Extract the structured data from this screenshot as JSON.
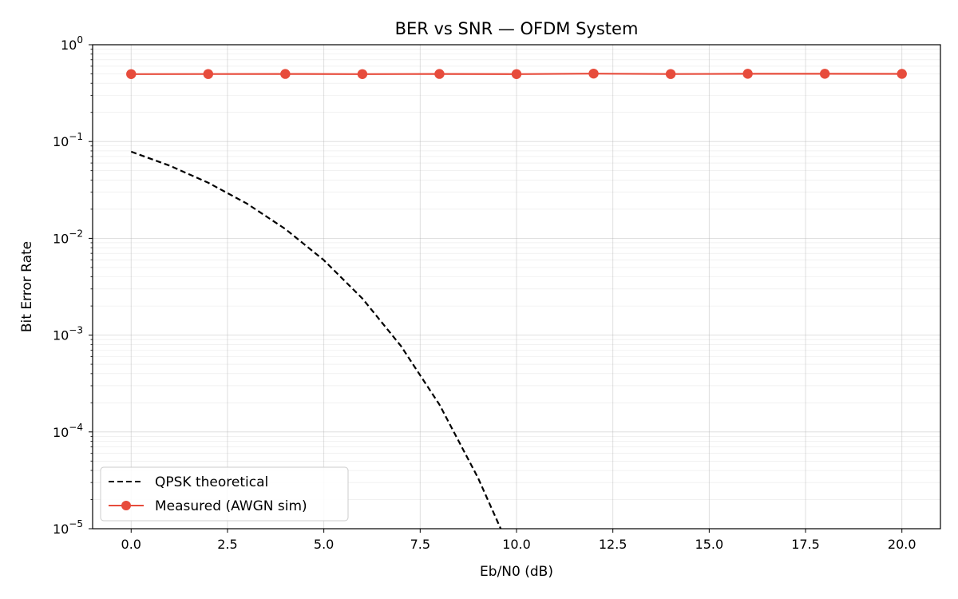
{
  "chart_data": {
    "type": "line",
    "title": "BER vs SNR — OFDM System",
    "xlabel": "Eb/N0 (dB)",
    "ylabel": "Bit Error Rate",
    "xlim": [
      -1,
      21
    ],
    "ylim": [
      1e-05,
      1
    ],
    "yscale": "log",
    "grid": true,
    "legend_location": "lower-left",
    "x_ticks": [
      {
        "value": 0.0,
        "label": "0.0"
      },
      {
        "value": 2.5,
        "label": "2.5"
      },
      {
        "value": 5.0,
        "label": "5.0"
      },
      {
        "value": 7.5,
        "label": "7.5"
      },
      {
        "value": 10.0,
        "label": "10.0"
      },
      {
        "value": 12.5,
        "label": "12.5"
      },
      {
        "value": 15.0,
        "label": "15.0"
      },
      {
        "value": 17.5,
        "label": "17.5"
      },
      {
        "value": 20.0,
        "label": "20.0"
      }
    ],
    "y_ticks": [
      {
        "value": 1,
        "base": "10",
        "exp": "0"
      },
      {
        "value": 0.1,
        "base": "10",
        "exp": "−1"
      },
      {
        "value": 0.01,
        "base": "10",
        "exp": "−2"
      },
      {
        "value": 0.001,
        "base": "10",
        "exp": "−3"
      },
      {
        "value": 0.0001,
        "base": "10",
        "exp": "−4"
      },
      {
        "value": 1e-05,
        "base": "10",
        "exp": "−5"
      }
    ],
    "series": [
      {
        "name": "QPSK theoretical",
        "color": "#000000",
        "style": "dashed",
        "marker": "none",
        "x": [
          0,
          1,
          2,
          3,
          4,
          5,
          6,
          7,
          8,
          9,
          9.59
        ],
        "y": [
          0.0786,
          0.0563,
          0.0375,
          0.0229,
          0.0125,
          0.00595,
          0.00239,
          0.000773,
          0.000191,
          3.36e-05,
          1e-05
        ]
      },
      {
        "name": "Measured (AWGN sim)",
        "color": "#e74c3c",
        "style": "solid",
        "marker": "circle",
        "x": [
          0,
          2,
          4,
          6,
          8,
          10,
          12,
          14,
          16,
          18,
          20
        ],
        "y": [
          0.497,
          0.498,
          0.499,
          0.497,
          0.499,
          0.497,
          0.503,
          0.498,
          0.501,
          0.501,
          0.5
        ]
      }
    ]
  }
}
